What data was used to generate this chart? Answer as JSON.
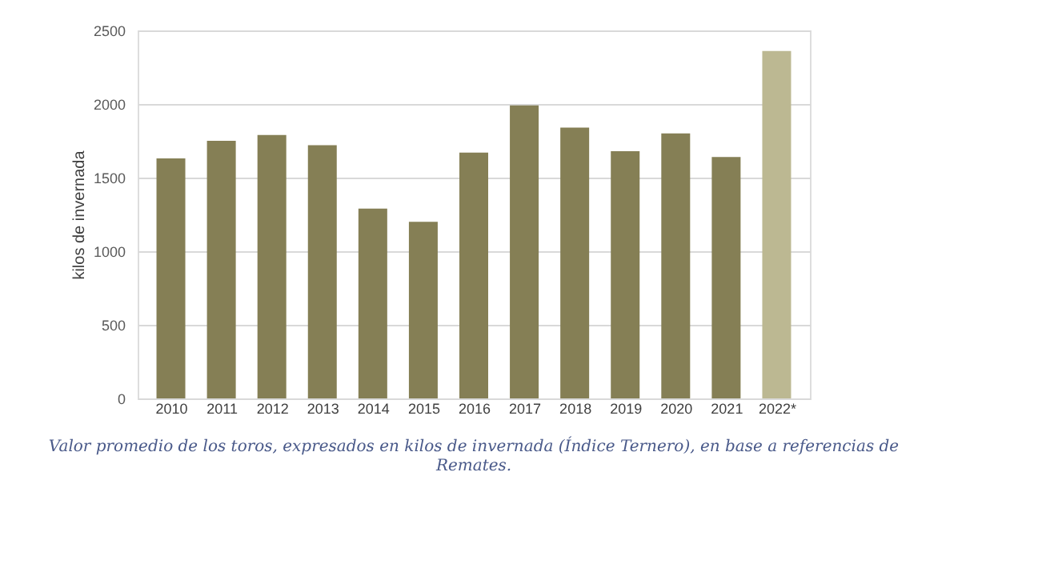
{
  "chart_data": {
    "type": "bar",
    "ylabel": "kilos de invernada",
    "categories": [
      "2010",
      "2011",
      "2012",
      "2013",
      "2014",
      "2015",
      "2016",
      "2017",
      "2018",
      "2019",
      "2020",
      "2021",
      "2022*"
    ],
    "values": [
      1630,
      1750,
      1790,
      1720,
      1290,
      1200,
      1670,
      1990,
      1840,
      1680,
      1800,
      1640,
      2360
    ],
    "colors": [
      "#857f55",
      "#857f55",
      "#857f55",
      "#857f55",
      "#857f55",
      "#857f55",
      "#857f55",
      "#857f55",
      "#857f55",
      "#857f55",
      "#857f55",
      "#857f55",
      "#bcb892"
    ],
    "ylim": [
      0,
      2500
    ],
    "yticks": [
      0,
      500,
      1000,
      1500,
      2000,
      2500
    ],
    "grid": "y",
    "annotations": [
      "Valor promedio de los toros, expresados en kilos de invernada (Índice Ternero), en base a referencias de",
      "Remates."
    ]
  }
}
